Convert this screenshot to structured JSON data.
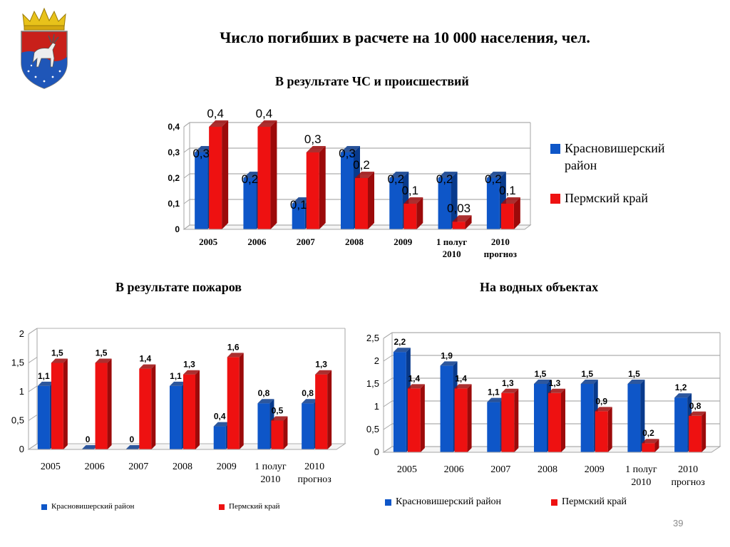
{
  "page": {
    "title": "Число погибших в расчете на 10 000 населения, чел.",
    "page_number": "39"
  },
  "colors": {
    "blue": "#0e56c8",
    "blue_side": "#083a8c",
    "red": "#ee1111",
    "red_side": "#9c0a0a",
    "grid": "#9a9a9a"
  },
  "chart_data": [
    {
      "type": "bar",
      "title": "В результате ЧС и происшествий",
      "categories": [
        "2005",
        "2006",
        "2007",
        "2008",
        "2009",
        "1 полуг|2010",
        "2010|прогноз"
      ],
      "series": [
        {
          "name": "Красновишерский район",
          "values": [
            0.3,
            0.2,
            0.1,
            0.3,
            0.2,
            0.2,
            0.2
          ],
          "labels": [
            "0,3",
            "0,2",
            "0,1",
            "0,3",
            "0,2",
            "0,2",
            "0,2"
          ]
        },
        {
          "name": "Пермский край",
          "values": [
            0.4,
            0.4,
            0.3,
            0.2,
            0.1,
            0.03,
            0.1
          ],
          "labels": [
            "0,4",
            "0,4",
            "0,3",
            "0,2",
            "0,1",
            "0,03",
            "0,1"
          ]
        }
      ],
      "ylim": [
        0,
        0.4
      ],
      "yticks": [
        "0",
        "0,1",
        "0,2",
        "0,3",
        "0,4"
      ],
      "legend": "right",
      "grid": true
    },
    {
      "type": "bar",
      "title": "В результате пожаров",
      "categories": [
        "2005",
        "2006",
        "2007",
        "2008",
        "2009",
        "1 полуг|2010",
        "2010|прогноз"
      ],
      "series": [
        {
          "name": "Красновишерский район",
          "values": [
            1.1,
            0,
            0,
            1.1,
            0.4,
            0.8,
            0.8
          ],
          "labels": [
            "1,1",
            "0",
            "0",
            "1,1",
            "0,4",
            "0,8",
            "0,8"
          ]
        },
        {
          "name": "Пермский край",
          "values": [
            1.5,
            1.5,
            1.4,
            1.3,
            1.6,
            0.5,
            1.3
          ],
          "labels": [
            "1,5",
            "1,5",
            "1,4",
            "1,3",
            "1,6",
            "0,5",
            "1,3"
          ]
        }
      ],
      "ylim": [
        0,
        2
      ],
      "yticks": [
        "0",
        "0,5",
        "1",
        "1,5",
        "2"
      ],
      "legend": "bottom",
      "grid": false
    },
    {
      "type": "bar",
      "title": "На водных объектах",
      "categories": [
        "2005",
        "2006",
        "2007",
        "2008",
        "2009",
        "1 полуг|2010",
        "2010|прогноз"
      ],
      "series": [
        {
          "name": "Красновишерский район",
          "values": [
            2.2,
            1.9,
            1.1,
            1.5,
            1.5,
            1.5,
            1.2
          ],
          "labels": [
            "2,2",
            "1,9",
            "1,1",
            "1,5",
            "1,5",
            "1,5",
            "1,2"
          ]
        },
        {
          "name": "Пермский край",
          "values": [
            1.4,
            1.4,
            1.3,
            1.3,
            0.9,
            0.2,
            0.8
          ],
          "labels": [
            "1,4",
            "1,4",
            "1,3",
            "1,3",
            "0,9",
            "0,2",
            "0,8"
          ]
        }
      ],
      "ylim": [
        0,
        2.5
      ],
      "yticks": [
        "0",
        "0,5",
        "1",
        "1,5",
        "2",
        "2,5"
      ],
      "legend": "bottom",
      "grid": true
    }
  ]
}
